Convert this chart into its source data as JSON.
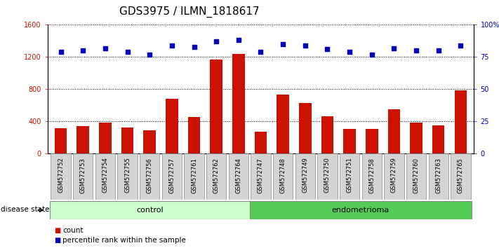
{
  "title": "GDS3975 / ILMN_1818617",
  "samples": [
    "GSM572752",
    "GSM572753",
    "GSM572754",
    "GSM572755",
    "GSM572756",
    "GSM572757",
    "GSM572761",
    "GSM572762",
    "GSM572764",
    "GSM572747",
    "GSM572748",
    "GSM572749",
    "GSM572750",
    "GSM572751",
    "GSM572758",
    "GSM572759",
    "GSM572760",
    "GSM572763",
    "GSM572765"
  ],
  "counts": [
    320,
    345,
    390,
    330,
    295,
    685,
    460,
    1165,
    1235,
    270,
    730,
    630,
    465,
    305,
    305,
    555,
    385,
    355,
    790
  ],
  "percentiles": [
    79,
    80,
    82,
    79,
    77,
    84,
    83,
    87,
    88,
    79,
    85,
    84,
    81,
    79,
    77,
    82,
    80,
    80,
    84
  ],
  "control_count": 9,
  "endometrioma_count": 10,
  "bar_color": "#cc1100",
  "dot_color": "#0000bb",
  "control_color": "#ccffcc",
  "endometrioma_color": "#55cc55",
  "ylim_left": [
    0,
    1600
  ],
  "ylim_right": [
    0,
    100
  ],
  "yticks_left": [
    0,
    400,
    800,
    1200,
    1600
  ],
  "yticks_right": [
    0,
    25,
    50,
    75,
    100
  ],
  "legend_count_label": "count",
  "legend_pct_label": "percentile rank within the sample",
  "disease_state_label": "disease state",
  "control_label": "control",
  "endometrioma_label": "endometrioma",
  "title_fontsize": 11,
  "tick_fontsize": 7,
  "label_fontsize": 8,
  "xtick_bg_color": "#d4d4d4"
}
